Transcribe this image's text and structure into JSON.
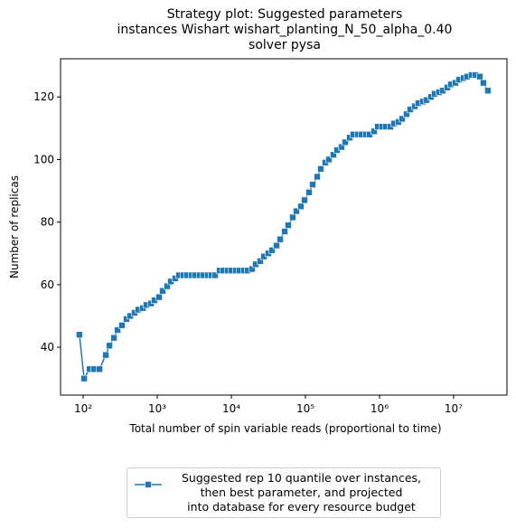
{
  "chart_data": {
    "type": "line",
    "title": "Strategy plot: Suggested parameters\ninstances Wishart wishart_planting_N_50_alpha_0.40\nsolver pysa",
    "xlabel": "Total number of spin variable reads (proportional to time)",
    "ylabel": "Number of replicas",
    "xscale": "log",
    "xlim": [
      49.5,
      52500000
    ],
    "ylim": [
      24.7,
      132.2
    ],
    "xticks": [
      {
        "value": 100,
        "label": "10²"
      },
      {
        "value": 1000,
        "label": "10³"
      },
      {
        "value": 10000,
        "label": "10⁴"
      },
      {
        "value": 100000,
        "label": "10⁵"
      },
      {
        "value": 1000000,
        "label": "10⁶"
      },
      {
        "value": 10000000,
        "label": "10⁷"
      }
    ],
    "yticks": [
      40,
      60,
      80,
      100,
      120
    ],
    "grid": false,
    "legend_position": "below",
    "x": [
      89,
      103,
      122,
      140,
      166,
      202,
      226,
      260,
      291,
      334,
      385,
      431,
      495,
      555,
      638,
      714,
      822,
      919,
      1058,
      1183,
      1361,
      1524,
      1754,
      1963,
      2259,
      2524,
      2904,
      3251,
      3741,
      4188,
      4819,
      5395,
      6031,
      6938,
      7762,
      8932,
      10000,
      11508,
      12883,
      14825,
      16596,
      19055,
      21330,
      24547,
      27479,
      31623,
      35397,
      40738,
      45604,
      52481,
      58614,
      67453,
      75509,
      86896,
      97275,
      111944,
      125314,
      144212,
      161065,
      185353,
      207490,
      238781,
      267300,
      307610,
      344350,
      396280,
      442580,
      509330,
      570180,
      656160,
      734540,
      845300,
      946240,
      1088900,
      1216200,
      1399600,
      1566800,
      1803100,
      2018400,
      2322800,
      2600200,
      2992300,
      3341900,
      3845900,
      4305300,
      4954500,
      5546100,
      6382600,
      7144700,
      8222400,
      9183400,
      10568000,
      11830000,
      13614000,
      15240000,
      17538000,
      19633000,
      22591000,
      25235000,
      29040000
    ],
    "series": [
      {
        "name": "Suggested rep 10 quantile over instances,\nthen best parameter, and projected\ninto database for every resource budget",
        "color": "#1f77b4",
        "values": [
          44,
          30,
          33,
          33,
          33,
          37.5,
          40.5,
          43,
          45.5,
          47,
          49,
          50,
          51,
          52,
          52.5,
          53.5,
          54,
          55,
          56,
          58,
          59.5,
          61,
          62,
          63,
          63,
          63,
          63,
          63,
          63,
          63,
          63,
          63,
          63,
          64.5,
          64.5,
          64.5,
          64.5,
          64.5,
          64.5,
          64.5,
          64.5,
          65,
          66.5,
          67.5,
          69,
          70,
          71,
          72.5,
          74.5,
          77,
          79,
          81.5,
          83.5,
          85,
          87,
          89.5,
          92,
          94.5,
          97,
          99,
          100,
          101.5,
          103,
          104,
          105.5,
          107,
          108,
          108,
          108,
          108,
          108,
          109,
          110.5,
          110.5,
          110.5,
          110.5,
          111.5,
          112,
          113,
          114.5,
          116,
          117,
          118,
          118.5,
          119,
          120,
          121,
          121.5,
          122,
          123,
          124,
          124.5,
          125.5,
          126,
          126.5,
          127,
          127,
          126.5,
          124.5,
          122
        ]
      }
    ]
  }
}
